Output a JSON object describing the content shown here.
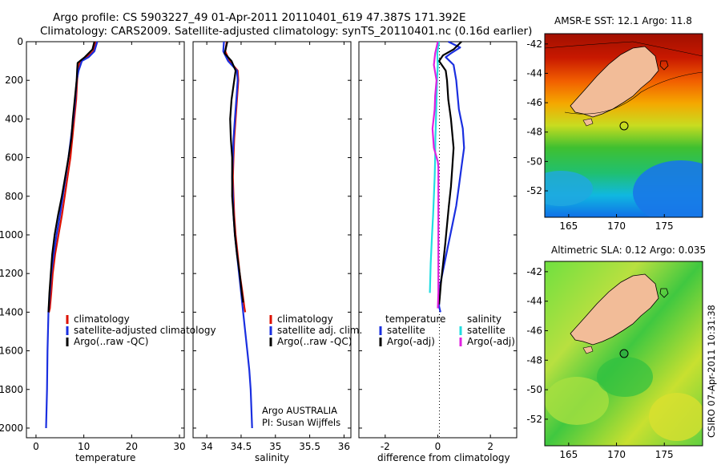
{
  "title_line1": "Argo profile: CS 5903227_49 01-Apr-2011 20110401_619 47.387S 171.392E",
  "title_line2": "Climatology: CARS2009. Satellite-adjusted climatology: synTS_20110401.nc (0.16d earlier)",
  "credit": "CSIRO 07-Apr-2011 10:31:38",
  "colors": {
    "clim": "#dd1100",
    "sat": "#1a2fe0",
    "argo": "#000000",
    "sal_sat": "#22dde0",
    "sal_argo": "#e020e0",
    "land": "#f2bc98"
  },
  "chart_data": [
    {
      "id": "temperature",
      "type": "line",
      "xlabel": "temperature",
      "xlim": [
        -2,
        31
      ],
      "ylim": [
        2050,
        0
      ],
      "xticks": [
        0,
        10,
        20,
        30
      ],
      "xtick_labels": [
        "0",
        "10",
        "20",
        "30"
      ],
      "yticks": [
        0,
        200,
        400,
        600,
        800,
        1000,
        1200,
        1400,
        1600,
        1800,
        2000
      ],
      "ytick_labels": [
        "0",
        "200",
        "400",
        "600",
        "800",
        "1000",
        "1200",
        "1400",
        "1600",
        "1800",
        "2000"
      ],
      "legend": [
        "climatology",
        "satellite-adjusted climatology",
        "Argo(..raw -QC)"
      ],
      "series": [
        {
          "name": "climatology",
          "color": "#dd1100",
          "x": [
            12.4,
            12.0,
            10.6,
            9.2,
            8.8,
            8.6,
            8.4,
            8.0,
            7.6,
            7.2,
            6.6,
            6.0,
            5.4,
            4.7,
            4.0,
            3.5,
            3.2,
            2.9,
            2.7,
            2.6
          ],
          "y": [
            0,
            50,
            80,
            100,
            150,
            200,
            300,
            400,
            500,
            600,
            700,
            800,
            900,
            1000,
            1100,
            1200,
            1300,
            1380,
            1400,
            1400
          ]
        },
        {
          "name": "satellite-adjusted climatology",
          "color": "#1a2fe0",
          "x": [
            12.8,
            12.2,
            11.0,
            9.6,
            8.9,
            8.5,
            8.2,
            7.8,
            7.3,
            6.8,
            6.2,
            5.6,
            5.0,
            4.3,
            3.7,
            3.2,
            2.9,
            2.6,
            2.4,
            2.3,
            2.2,
            2.1
          ],
          "y": [
            0,
            50,
            80,
            100,
            150,
            200,
            300,
            400,
            500,
            600,
            700,
            800,
            900,
            1000,
            1100,
            1200,
            1300,
            1400,
            1600,
            1800,
            1900,
            2000
          ]
        },
        {
          "name": "Argo(..raw -QC)",
          "color": "#000000",
          "x": [
            12.2,
            11.8,
            10.2,
            8.7,
            8.6,
            8.5,
            8.1,
            7.7,
            7.4,
            6.8,
            6.1,
            5.4,
            4.6,
            3.9,
            3.4,
            3.1,
            2.8,
            2.6
          ],
          "y": [
            0,
            40,
            80,
            110,
            150,
            200,
            300,
            400,
            500,
            600,
            700,
            800,
            900,
            1000,
            1100,
            1200,
            1300,
            1400
          ]
        }
      ]
    },
    {
      "id": "salinity",
      "type": "line",
      "xlabel": "salinity",
      "xlim": [
        33.8,
        36.1
      ],
      "ylim": [
        2050,
        0
      ],
      "xticks": [
        34,
        34.5,
        35,
        35.5,
        36
      ],
      "xtick_labels": [
        "34",
        "34.5",
        "35",
        "35.5",
        "36"
      ],
      "legend": [
        "climatology",
        "satellite adj. clim.",
        "Argo(..raw -QC)"
      ],
      "annotation": [
        "Argo AUSTRALIA",
        "PI: Susan Wijffels"
      ],
      "series": [
        {
          "name": "climatology",
          "color": "#dd1100",
          "x": [
            34.29,
            34.27,
            34.33,
            34.45,
            34.46,
            34.44,
            34.42,
            34.4,
            34.39,
            34.38,
            34.39,
            34.4,
            34.42,
            34.45,
            34.48,
            34.52,
            34.55,
            34.56
          ],
          "y": [
            0,
            50,
            100,
            150,
            200,
            300,
            400,
            500,
            600,
            700,
            800,
            900,
            1000,
            1100,
            1200,
            1300,
            1380,
            1400
          ]
        },
        {
          "name": "satellite adj. clim.",
          "color": "#1a2fe0",
          "x": [
            34.25,
            34.24,
            34.31,
            34.44,
            34.45,
            34.43,
            34.41,
            34.39,
            34.38,
            34.37,
            34.38,
            34.39,
            34.41,
            34.44,
            34.47,
            34.5,
            34.53,
            34.56,
            34.59,
            34.62,
            34.64,
            34.66
          ],
          "y": [
            0,
            50,
            100,
            150,
            200,
            300,
            400,
            500,
            600,
            700,
            800,
            900,
            1000,
            1100,
            1200,
            1300,
            1400,
            1500,
            1600,
            1700,
            1800,
            2000
          ]
        },
        {
          "name": "Argo(..raw -QC)",
          "color": "#000000",
          "x": [
            34.3,
            34.26,
            34.36,
            34.42,
            34.4,
            34.36,
            34.34,
            34.35,
            34.37,
            34.37,
            34.37,
            34.39,
            34.41,
            34.44,
            34.48,
            34.51,
            34.53
          ],
          "y": [
            0,
            60,
            100,
            150,
            200,
            300,
            400,
            500,
            600,
            700,
            800,
            900,
            1000,
            1100,
            1200,
            1300,
            1350
          ]
        }
      ]
    },
    {
      "id": "difference",
      "type": "line",
      "xlabel": "difference from climatology",
      "xlim": [
        -3,
        3
      ],
      "ylim": [
        2050,
        0
      ],
      "xticks": [
        -2,
        0,
        2
      ],
      "xtick_labels": [
        "-2",
        "0",
        "2"
      ],
      "legend_headers": [
        "temperature",
        "salinity"
      ],
      "legend": [
        "satellite",
        "Argo(-adj)",
        "satellite",
        "Argo(-adj)"
      ],
      "series": [
        {
          "name": "temperature satellite",
          "color": "#1a2fe0",
          "x": [
            0.4,
            0.85,
            0.5,
            0.3,
            0.6,
            0.7,
            0.8,
            0.95,
            1.0,
            0.9,
            0.8,
            0.7,
            0.55,
            0.4,
            0.25,
            0.1,
            0.05,
            0.05,
            0.1
          ],
          "y": [
            0,
            30,
            60,
            80,
            120,
            200,
            350,
            450,
            550,
            650,
            750,
            850,
            950,
            1050,
            1150,
            1250,
            1320,
            1370,
            1400
          ]
        },
        {
          "name": "temperature Argo(-adj)",
          "color": "#000000",
          "x": [
            0.9,
            0.6,
            0.2,
            0.05,
            0.3,
            0.35,
            0.4,
            0.5,
            0.6,
            0.55,
            0.5,
            0.42,
            0.35,
            0.28,
            0.2,
            0.12,
            0.07,
            0.05
          ],
          "y": [
            0,
            40,
            70,
            100,
            150,
            200,
            300,
            400,
            550,
            650,
            750,
            850,
            950,
            1050,
            1150,
            1250,
            1330,
            1360
          ]
        },
        {
          "name": "salinity satellite",
          "color": "#22dde0",
          "x": [
            0.05,
            -0.02,
            0.0,
            -0.03,
            -0.05,
            -0.07,
            -0.09,
            -0.1,
            -0.12,
            -0.15,
            -0.18,
            -0.22,
            -0.27,
            -0.3
          ],
          "y": [
            0,
            60,
            120,
            200,
            300,
            400,
            500,
            600,
            700,
            800,
            900,
            1000,
            1150,
            1300
          ]
        },
        {
          "name": "salinity Argo(-adj)",
          "color": "#e020e0",
          "x": [
            0.0,
            -0.1,
            -0.15,
            -0.05,
            -0.1,
            -0.12,
            -0.2,
            -0.15,
            0.0,
            0.02,
            0.02,
            0.02,
            0.02,
            0.02,
            0.0
          ],
          "y": [
            0,
            60,
            120,
            200,
            280,
            350,
            450,
            550,
            620,
            650,
            800,
            950,
            1100,
            1300,
            1380
          ]
        }
      ]
    }
  ],
  "maps": [
    {
      "id": "sst",
      "title": "AMSR-E SST: 12.1 Argo: 11.8",
      "xticks": [
        165,
        170,
        175
      ],
      "xtick_labels": [
        "165",
        "170",
        "175"
      ],
      "yticks": [
        -42,
        -44,
        -46,
        -48,
        -50,
        -52
      ],
      "ytick_labels": [
        "-42",
        "-44",
        "-46",
        "-48",
        "-50",
        "-52"
      ],
      "lon_range": [
        162.5,
        179
      ],
      "lat_range": [
        -53.8,
        -41.3
      ],
      "float_lon": 171.4,
      "float_lat": -47.4
    },
    {
      "id": "sla",
      "title": "Altimetric SLA: 0.12 Argo: 0.035",
      "xticks": [
        165,
        170,
        175
      ],
      "xtick_labels": [
        "165",
        "170",
        "175"
      ],
      "yticks": [
        -42,
        -44,
        -46,
        -48,
        -50,
        -52
      ],
      "ytick_labels": [
        "-42",
        "-44",
        "-46",
        "-48",
        "-50",
        "-52"
      ],
      "lon_range": [
        162.5,
        179
      ],
      "lat_range": [
        -53.8,
        -41.3
      ],
      "float_lon": 171.4,
      "float_lat": -47.4
    }
  ]
}
